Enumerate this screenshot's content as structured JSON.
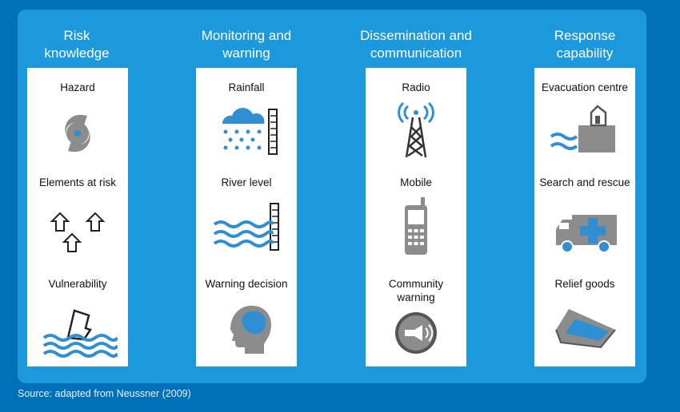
{
  "columns": [
    {
      "title": "Risk\nknowledge",
      "items": [
        {
          "label": "Hazard",
          "icon": "cyclone-icon"
        },
        {
          "label": "Elements at risk",
          "icon": "houses-icon"
        },
        {
          "label": "Vulnerability",
          "icon": "house-in-flood-icon"
        }
      ]
    },
    {
      "title": "Monitoring and\nwarning",
      "items": [
        {
          "label": "Rainfall",
          "icon": "rain-gauge-icon"
        },
        {
          "label": "River level",
          "icon": "water-level-gauge-icon"
        },
        {
          "label": "Warning decision",
          "icon": "head-brain-icon"
        }
      ]
    },
    {
      "title": "Dissemination and\ncommunication",
      "items": [
        {
          "label": "Radio",
          "icon": "radio-tower-icon"
        },
        {
          "label": "Mobile",
          "icon": "mobile-phone-icon"
        },
        {
          "label": "Community\nwarning",
          "icon": "megaphone-icon"
        }
      ]
    },
    {
      "title": "Response\ncapability",
      "items": [
        {
          "label": "Evacuation centre",
          "icon": "evacuation-shelter-icon"
        },
        {
          "label": "Search and rescue",
          "icon": "ambulance-icon"
        },
        {
          "label": "Relief goods",
          "icon": "relief-box-icon"
        }
      ]
    }
  ],
  "source": "Source: adapted from Neussner (2009)",
  "colors": {
    "background": "#0070b8",
    "panel": "#1b99dc",
    "icon_blue": "#2f8fd2",
    "icon_gray": "#8c8c8c"
  }
}
